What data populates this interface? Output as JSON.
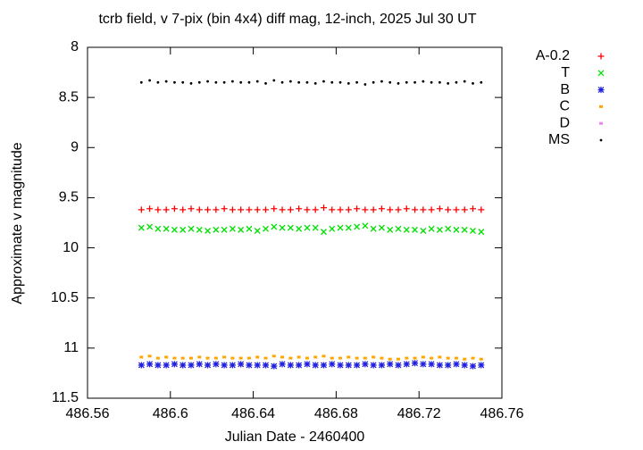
{
  "chart_data": {
    "type": "scatter",
    "title": "tcrb field, v 7-pix (bin 4x4) diff mag, 12-inch, 2025 Jul 30 UT",
    "x_label": "Julian Date - 2460400",
    "y_label": "Approximate v magnitude",
    "xlim": [
      486.56,
      486.76
    ],
    "xticks": [
      486.56,
      486.6,
      486.64,
      486.68,
      486.72,
      486.76
    ],
    "ylim": [
      8,
      11.5
    ],
    "y_inverted": true,
    "yticks": [
      8,
      8.5,
      9,
      9.5,
      10,
      10.5,
      11,
      11.5
    ],
    "grid": false,
    "legend": "outside-right",
    "x": [
      486.586,
      486.59,
      486.594,
      486.598,
      486.602,
      486.606,
      486.61,
      486.614,
      486.618,
      486.622,
      486.626,
      486.63,
      486.634,
      486.638,
      486.642,
      486.646,
      486.65,
      486.654,
      486.658,
      486.662,
      486.666,
      486.67,
      486.674,
      486.678,
      486.682,
      486.686,
      486.69,
      486.694,
      486.698,
      486.702,
      486.706,
      486.71,
      486.714,
      486.718,
      486.722,
      486.726,
      486.73,
      486.734,
      486.738,
      486.742,
      486.746,
      486.75
    ],
    "series": [
      {
        "name": "A-0.2",
        "color": "#ff0000",
        "marker": "plus",
        "values": [
          9.62,
          9.61,
          9.62,
          9.62,
          9.61,
          9.62,
          9.61,
          9.62,
          9.62,
          9.62,
          9.61,
          9.62,
          9.62,
          9.62,
          9.62,
          9.62,
          9.61,
          9.62,
          9.62,
          9.61,
          9.62,
          9.62,
          9.6,
          9.62,
          9.62,
          9.62,
          9.61,
          9.62,
          9.62,
          9.61,
          9.62,
          9.62,
          9.61,
          9.62,
          9.62,
          9.62,
          9.61,
          9.62,
          9.62,
          9.62,
          9.61,
          9.62
        ]
      },
      {
        "name": "T",
        "color": "#00e000",
        "marker": "cross",
        "values": [
          9.8,
          9.79,
          9.81,
          9.81,
          9.82,
          9.82,
          9.81,
          9.82,
          9.83,
          9.82,
          9.82,
          9.81,
          9.82,
          9.81,
          9.83,
          9.81,
          9.79,
          9.8,
          9.8,
          9.81,
          9.8,
          9.8,
          9.84,
          9.81,
          9.8,
          9.8,
          9.79,
          9.78,
          9.81,
          9.8,
          9.82,
          9.81,
          9.82,
          9.82,
          9.83,
          9.81,
          9.82,
          9.81,
          9.82,
          9.82,
          9.83,
          9.84
        ]
      },
      {
        "name": "B",
        "color": "#2020e0",
        "marker": "star",
        "values": [
          11.17,
          11.16,
          11.17,
          11.17,
          11.16,
          11.17,
          11.17,
          11.16,
          11.17,
          11.16,
          11.17,
          11.17,
          11.16,
          11.17,
          11.17,
          11.17,
          11.18,
          11.16,
          11.17,
          11.17,
          11.16,
          11.17,
          11.17,
          11.16,
          11.17,
          11.17,
          11.17,
          11.16,
          11.17,
          11.17,
          11.16,
          11.17,
          11.16,
          11.15,
          11.16,
          11.16,
          11.17,
          11.17,
          11.16,
          11.17,
          11.18,
          11.17
        ]
      },
      {
        "name": "C",
        "color": "#ffa500",
        "marker": "square",
        "values": [
          11.09,
          11.08,
          11.1,
          11.09,
          11.1,
          11.1,
          11.1,
          11.09,
          11.1,
          11.1,
          11.09,
          11.1,
          11.1,
          11.1,
          11.09,
          11.1,
          11.08,
          11.09,
          11.1,
          11.09,
          11.1,
          11.09,
          11.08,
          11.1,
          11.1,
          11.09,
          11.1,
          11.1,
          11.09,
          11.1,
          11.11,
          11.11,
          11.1,
          11.1,
          11.09,
          11.1,
          11.09,
          11.1,
          11.1,
          11.11,
          11.1,
          11.11
        ]
      },
      {
        "name": "D",
        "color": "#ee82ee",
        "marker": "square",
        "values": [
          null,
          null,
          null,
          null,
          null,
          null,
          null,
          null,
          null,
          null,
          null,
          null,
          null,
          null,
          null,
          null,
          null,
          null,
          null,
          null,
          null,
          null,
          null,
          null,
          null,
          null,
          null,
          null,
          null,
          null,
          null,
          null,
          null,
          null,
          null,
          null,
          null,
          null,
          null,
          null,
          null,
          null
        ]
      },
      {
        "name": "MS",
        "color": "#000000",
        "marker": "dot",
        "values": [
          8.35,
          8.33,
          8.35,
          8.34,
          8.35,
          8.35,
          8.36,
          8.35,
          8.34,
          8.35,
          8.35,
          8.34,
          8.35,
          8.35,
          8.34,
          8.36,
          8.33,
          8.35,
          8.34,
          8.35,
          8.35,
          8.36,
          8.34,
          8.35,
          8.35,
          8.36,
          8.35,
          8.37,
          8.35,
          8.34,
          8.35,
          8.36,
          8.35,
          8.35,
          8.34,
          8.35,
          8.35,
          8.36,
          8.35,
          8.34,
          8.36,
          8.35
        ]
      }
    ]
  }
}
